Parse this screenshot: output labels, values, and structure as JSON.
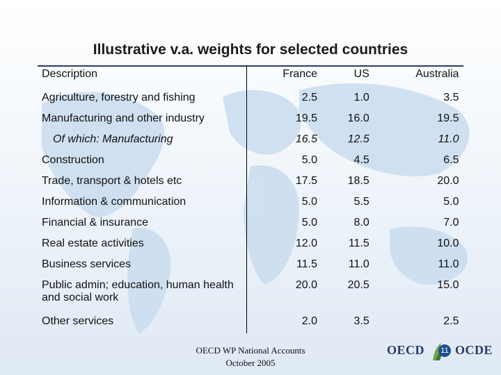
{
  "title": "Illustrative v.a. weights for selected countries",
  "table": {
    "headers": [
      "Description",
      "France",
      "US",
      "Australia"
    ],
    "rows": [
      {
        "label": "Agriculture, forestry and fishing",
        "values": [
          "2.5",
          "1.0",
          "3.5"
        ]
      },
      {
        "label": "Manufacturing and other industry",
        "values": [
          "19.5",
          "16.0",
          "19.5"
        ]
      },
      {
        "label": "Of which: Manufacturing",
        "values": [
          "16.5",
          "12.5",
          "11.0"
        ]
      },
      {
        "label": "Construction",
        "values": [
          "5.0",
          "4.5",
          "6.5"
        ]
      },
      {
        "label": "Trade, transport & hotels etc",
        "values": [
          "17.5",
          "18.5",
          "20.0"
        ]
      },
      {
        "label": "Information & communication",
        "values": [
          "5.0",
          "5.5",
          "5.0"
        ]
      },
      {
        "label": "Financial & insurance",
        "values": [
          "5.0",
          "8.0",
          "7.0"
        ]
      },
      {
        "label": "Real estate activities",
        "values": [
          "12.0",
          "11.5",
          "10.0"
        ]
      },
      {
        "label": "Business services",
        "values": [
          "11.5",
          "11.0",
          "11.0"
        ]
      },
      {
        "label": "Public admin; education, human health and social work",
        "values": [
          "20.0",
          "20.5",
          "15.0"
        ]
      },
      {
        "label": "Other services",
        "values": [
          "2.0",
          "3.5",
          "2.5"
        ]
      }
    ]
  },
  "footer": {
    "line1": "OECD WP National Accounts",
    "line2": "October 2005"
  },
  "logo": {
    "left": "OECD",
    "right": "OCDE",
    "page_number": "11"
  },
  "colors": {
    "background_gradient": "#c9dcef",
    "accent": "#2b3a6b",
    "page_badge": "#1f4f8f"
  }
}
